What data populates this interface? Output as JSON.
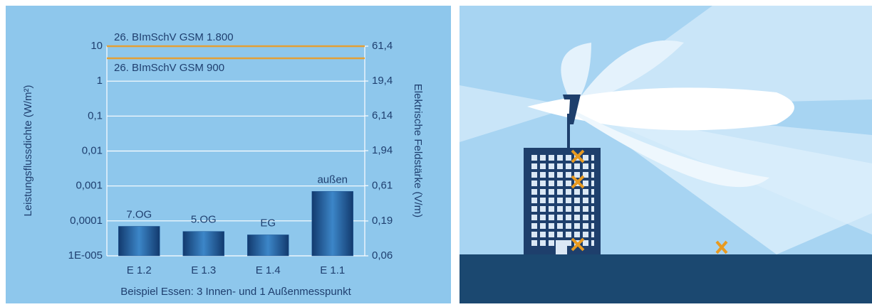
{
  "chart_data": {
    "type": "bar",
    "ylabel": "Leistungsflussdichte (W/m²)",
    "y2label": "Elektrische Feldstärke (V/m)",
    "xlabel": "Beispiel Essen: 3 Innen- und 1 Außenmesspunkt",
    "categories": [
      "E 1.2",
      "E 1.3",
      "E 1.4",
      "E 1.1"
    ],
    "values": [
      7e-05,
      5e-05,
      4e-05,
      0.0007
    ],
    "annotations": [
      "7.OG",
      "5.OG",
      "EG",
      "außen"
    ],
    "color": "#1f5a9a",
    "log_scale": true,
    "grid": true,
    "ylim": [
      1e-05,
      10
    ],
    "yticks": [
      {
        "value": 1e-05,
        "label": "1E-005"
      },
      {
        "value": 0.0001,
        "label": "0,0001"
      },
      {
        "value": 0.001,
        "label": "0,001"
      },
      {
        "value": 0.01,
        "label": "0,01"
      },
      {
        "value": 0.1,
        "label": "0,1"
      },
      1,
      10
    ],
    "y2lim": [
      0.06,
      61.4
    ],
    "y2ticks": [
      {
        "value": 0.06,
        "label": "0,06"
      },
      {
        "value": 0.19,
        "label": "0,19"
      },
      {
        "value": 0.61,
        "label": "0,61"
      },
      {
        "value": 1.94,
        "label": "1,94"
      },
      {
        "value": 6.14,
        "label": "6,14"
      },
      {
        "value": 19.4,
        "label": "19,4"
      },
      {
        "value": 61.4,
        "label": "61,4"
      }
    ],
    "reference_lines": [
      {
        "label": "26. BImSchV GSM 1.800",
        "value": 10,
        "color": "#e3a036"
      },
      {
        "label": "26. BImSchV GSM 900",
        "value": 4.5,
        "color": "#e3a036"
      }
    ]
  }
}
